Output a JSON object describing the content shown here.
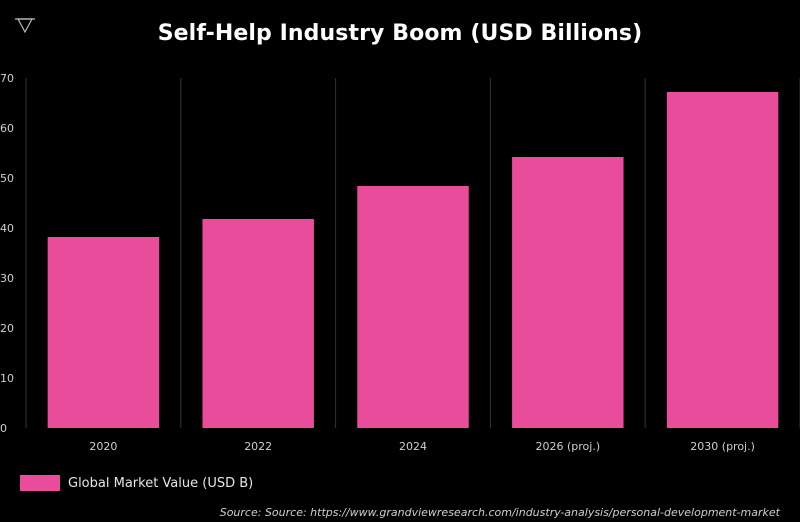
{
  "title": "Self-Help Industry Boom (USD Billions)",
  "logo": {
    "icon": "triangle-logo-icon"
  },
  "colors": {
    "bar": "#ea4c9c",
    "background": "#000000",
    "grid": "#333333",
    "text": "#cfcfcf"
  },
  "legend": {
    "label": "Global Market Value (USD B)"
  },
  "source": "Source: Source: https://www.grandviewresearch.com/industry-analysis/personal-development-market",
  "chart_data": {
    "type": "bar",
    "title": "Self-Help Industry Boom (USD Billions)",
    "categories": [
      "2020",
      "2022",
      "2024",
      "2026 (proj.)",
      "2030 (proj.)"
    ],
    "series": [
      {
        "name": "Global Market Value (USD B)",
        "values": [
          38.2,
          41.8,
          48.4,
          54.2,
          67.2
        ]
      }
    ],
    "yticks": [
      "0",
      "10",
      "20",
      "30",
      "40",
      "50",
      "60",
      "70"
    ],
    "ylim": [
      0,
      70
    ],
    "xlabel": "",
    "ylabel": "",
    "grid": "vertical",
    "legend": "bottom-left"
  }
}
